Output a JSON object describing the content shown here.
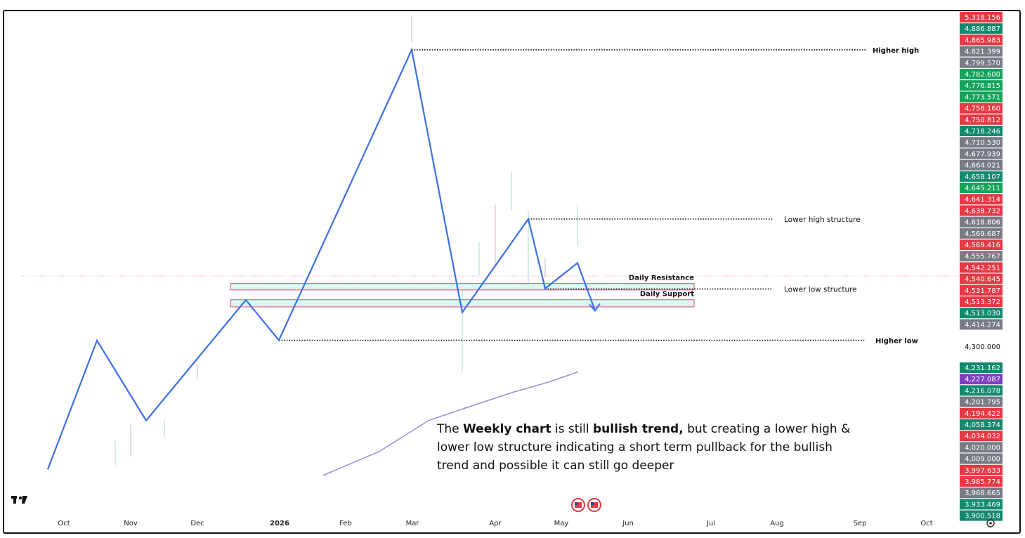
{
  "chart_data": {
    "type": "line",
    "title": "",
    "xlabel": "",
    "ylabel": "",
    "x_ticks": [
      "Oct",
      "Nov",
      "Dec",
      "2026",
      "Feb",
      "Mar",
      "Apr",
      "May",
      "Jun",
      "Jul",
      "Aug",
      "Sep",
      "Oct"
    ],
    "price_scale": [
      {
        "value": "5,318.156",
        "color": "#e53945"
      },
      {
        "value": "4,886.887",
        "color": "#13896d"
      },
      {
        "value": "4,865.983",
        "color": "#e53945"
      },
      {
        "value": "4,821.399",
        "color": "#787b86"
      },
      {
        "value": "4,799.570",
        "color": "#787b86"
      },
      {
        "value": "4,782.600",
        "color": "#13a35a"
      },
      {
        "value": "4,776.815",
        "color": "#13a35a"
      },
      {
        "value": "4,773.571",
        "color": "#13a35a"
      },
      {
        "value": "4,756.160",
        "color": "#e53945"
      },
      {
        "value": "4,750.812",
        "color": "#e53945"
      },
      {
        "value": "4,718.246",
        "color": "#13896d"
      },
      {
        "value": "4,710.530",
        "color": "#787b86"
      },
      {
        "value": "4,677.939",
        "color": "#787b86"
      },
      {
        "value": "4,664.021",
        "color": "#787b86"
      },
      {
        "value": "4,658.107",
        "color": "#13896d"
      },
      {
        "value": "4,645.211",
        "color": "#13a35a"
      },
      {
        "value": "4,641.314",
        "color": "#e53945"
      },
      {
        "value": "4,638.732",
        "color": "#e53945"
      },
      {
        "value": "4,618.806",
        "color": "#787b86"
      },
      {
        "value": "4,569.687",
        "color": "#787b86"
      },
      {
        "value": "4,569.416",
        "color": "#e53945"
      },
      {
        "value": "4,555.767",
        "color": "#787b86"
      },
      {
        "value": "4,542.251",
        "color": "#e53945"
      },
      {
        "value": "4,540.645",
        "color": "#e53945"
      },
      {
        "value": "4,531.787",
        "color": "#e53945"
      },
      {
        "value": "4,513.372",
        "color": "#e53945"
      },
      {
        "value": "4,513.030",
        "color": "#13896d"
      },
      {
        "value": "4,414.274",
        "color": "#787b86"
      },
      {
        "value": "4,300.000",
        "color": "none"
      },
      {
        "value": "4,231.162",
        "color": "#13896d"
      },
      {
        "value": "4,227.087",
        "color": "#7e3fc4"
      },
      {
        "value": "4,216.078",
        "color": "#13896d"
      },
      {
        "value": "4,201.795",
        "color": "#787b86"
      },
      {
        "value": "4,194.422",
        "color": "#e53945"
      },
      {
        "value": "4,058.374",
        "color": "#13896d"
      },
      {
        "value": "4,034.032",
        "color": "#e53945"
      },
      {
        "value": "4,020.000",
        "color": "#787b86"
      },
      {
        "value": "4,009.000",
        "color": "#787b86"
      },
      {
        "value": "3,997.633",
        "color": "#e53945"
      },
      {
        "value": "3,985.774",
        "color": "#e53945"
      },
      {
        "value": "3,968.665",
        "color": "#787b86"
      },
      {
        "value": "3,933.469",
        "color": "#13896d"
      },
      {
        "value": "3,900.518",
        "color": "#13896d"
      }
    ],
    "zigzag_series": {
      "name": "",
      "color": "#3b6ee6",
      "points": [
        {
          "x": "Sep 2025",
          "y": 3840
        },
        {
          "x": "Oct 2025",
          "y": 4380
        },
        {
          "x": "Nov 2025",
          "y": 4045
        },
        {
          "x": "Dec 2025",
          "y": 4550
        },
        {
          "x": "2026",
          "y": 4381
        },
        {
          "x": "Mar 2026",
          "y": 5598
        },
        {
          "x": "Mar 2026",
          "y": 4498
        },
        {
          "x": "Apr 2026",
          "y": 4889
        },
        {
          "x": "Apr 2026",
          "y": 4598
        },
        {
          "x": "May 2026",
          "y": 4705
        },
        {
          "x": "May 2026",
          "y": 4505
        }
      ]
    },
    "moving_average": {
      "name": "",
      "color": "#9b7fd9",
      "y_range": [
        3815,
        4249
      ]
    },
    "zones": [
      {
        "label": "Daily Resistance",
        "y_top": 4619,
        "y_bottom": 4592
      },
      {
        "label": "Daily Support",
        "y_top": 4551,
        "y_bottom": 4521
      }
    ],
    "levels": [
      {
        "label": "Higher high",
        "y": 5598
      },
      {
        "label": "Lower high structure",
        "y": 4889
      },
      {
        "label": "Lower low structure",
        "y": 4596
      },
      {
        "label": "Higher low",
        "y": 4381
      }
    ],
    "dotted_reference_price": 4540.645
  },
  "note": {
    "t1": "The ",
    "b1": "Weekly chart",
    "t2": " is still ",
    "b2": "bullish trend,",
    "t3": " but creating a lower high & lower low structure indicating a short term pullback for the bullish trend and possible it can still go deeper"
  },
  "icons": {
    "logo": "tradingview-logo-icon",
    "flags": "us-flag-icon",
    "settings": "gear-icon"
  }
}
